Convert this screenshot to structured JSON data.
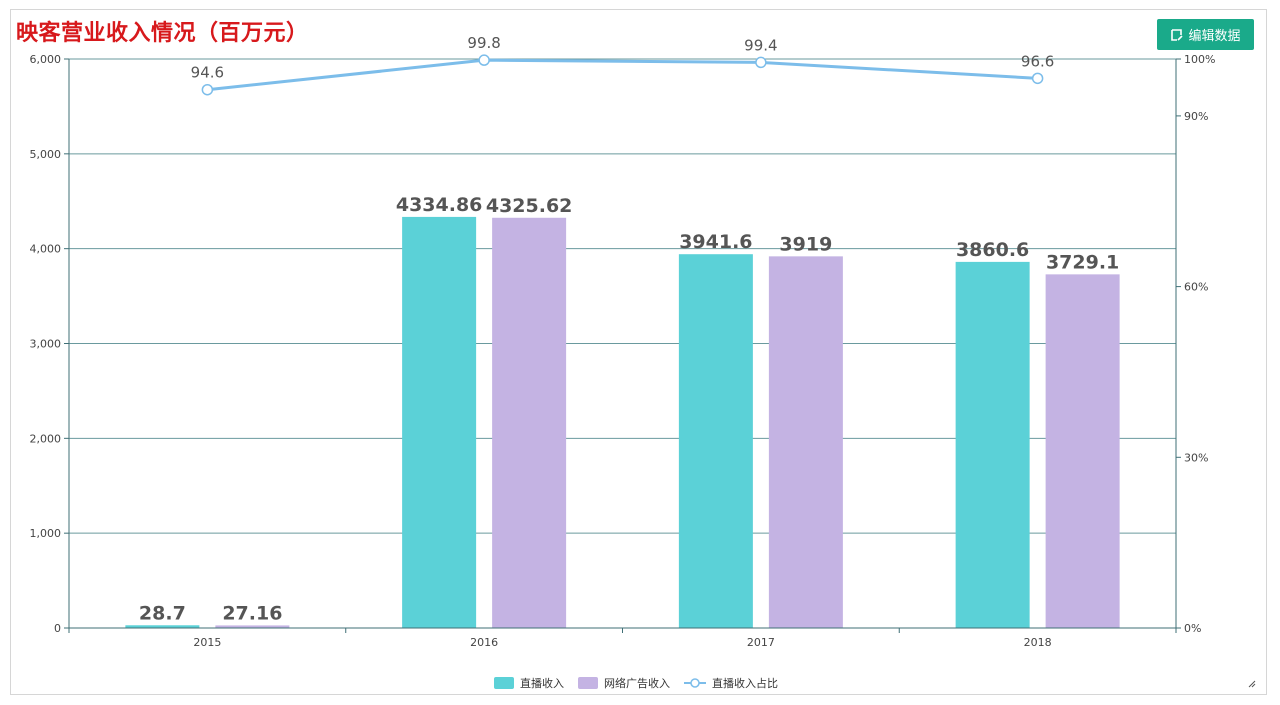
{
  "title": "映客营业收入情况（百万元）",
  "toolbar": {
    "edit_label": "编辑数据",
    "edit_icon": "edit-icon"
  },
  "chart_data": {
    "type": "bar",
    "title": "映客营业收入情况（百万元）",
    "categories": [
      "2015",
      "2016",
      "2017",
      "2018"
    ],
    "series": [
      {
        "name": "直播收入",
        "type": "bar",
        "color": "#5bd1d7",
        "values": [
          28.7,
          4334.86,
          3941.6,
          3860.6
        ],
        "labels": [
          "28.7",
          "4334.86",
          "3941.6",
          "3860.6"
        ]
      },
      {
        "name": "网络广告收入",
        "type": "bar",
        "color": "#c4b3e3",
        "values": [
          27.16,
          4325.62,
          3919,
          3729.1
        ],
        "labels": [
          "27.16",
          "4325.62",
          "3919",
          "3729.1"
        ]
      },
      {
        "name": "直播收入占比",
        "type": "line",
        "axis": "right",
        "color": "#7cbdea",
        "values": [
          94.6,
          99.8,
          99.4,
          96.6
        ],
        "labels": [
          "94.6",
          "99.8",
          "99.4",
          "96.6"
        ]
      }
    ],
    "y_left": {
      "min": 0,
      "max": 6000,
      "ticks": [
        0,
        1000,
        2000,
        3000,
        4000,
        5000,
        6000
      ],
      "tick_labels": [
        "0",
        "1,000",
        "2,000",
        "3,000",
        "4,000",
        "5,000",
        "6,000"
      ]
    },
    "y_right": {
      "min": 0,
      "max": 100,
      "ticks": [
        0,
        30,
        60,
        90,
        100
      ],
      "tick_labels": [
        "0%",
        "30%",
        "60%",
        "90%",
        "100%"
      ]
    },
    "grid": true,
    "legend_position": "bottom-center"
  }
}
